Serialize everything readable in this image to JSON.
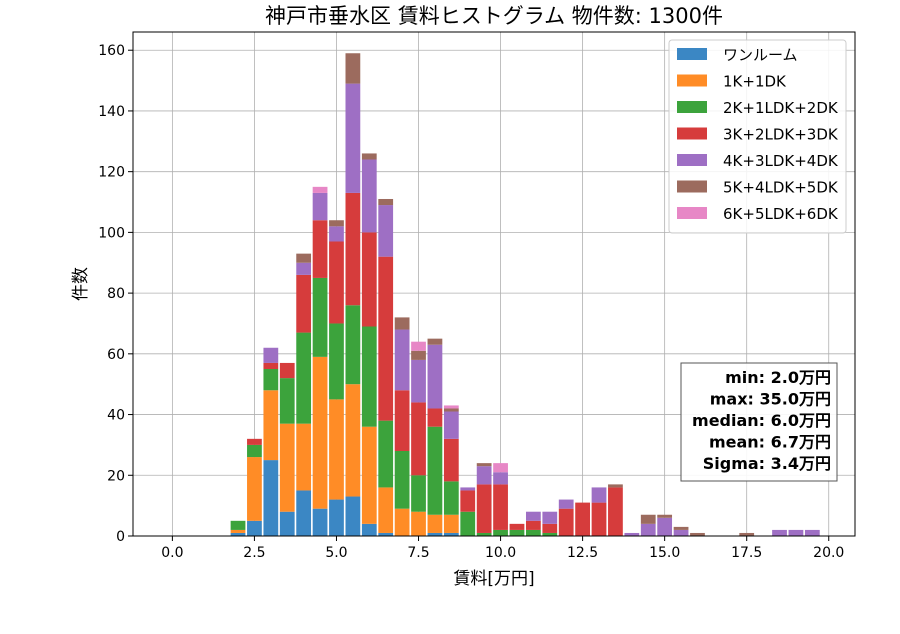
{
  "chart_data": {
    "type": "bar",
    "title": "神戸市垂水区 賃料ヒストグラム 物件数: 1300件",
    "xlabel": "賃料[万円]",
    "ylabel": "件数",
    "xlim": [
      -1.2,
      20.8
    ],
    "ylim": [
      0,
      166
    ],
    "x_ticks": [
      0.0,
      2.5,
      5.0,
      7.5,
      10.0,
      12.5,
      15.0,
      17.5,
      20.0
    ],
    "x_tick_labels": [
      "0.0",
      "2.5",
      "5.0",
      "7.5",
      "10.0",
      "12.5",
      "15.0",
      "17.5",
      "20.0"
    ],
    "y_ticks": [
      0,
      20,
      40,
      60,
      80,
      100,
      120,
      140,
      160
    ],
    "y_tick_labels": [
      "0",
      "20",
      "40",
      "60",
      "80",
      "100",
      "120",
      "140",
      "160"
    ],
    "bin_width": 0.5,
    "grid": true,
    "legend_position": "top-right",
    "x": [
      2.0,
      2.5,
      3.0,
      3.5,
      4.0,
      4.5,
      5.0,
      5.5,
      6.0,
      6.5,
      7.0,
      7.5,
      8.0,
      8.5,
      9.0,
      9.5,
      10.0,
      10.5,
      11.0,
      11.5,
      12.0,
      12.5,
      13.0,
      13.5,
      14.0,
      14.5,
      15.0,
      15.5,
      16.0,
      17.5,
      18.5,
      19.0,
      19.5
    ],
    "series": [
      {
        "name": "ワンルーム",
        "color": "#3b87c4",
        "values": [
          1,
          5,
          25,
          8,
          15,
          9,
          12,
          13,
          4,
          1,
          0,
          0,
          1,
          1,
          0,
          0,
          0,
          0,
          0,
          0,
          0,
          0,
          0,
          0,
          0,
          0,
          0,
          0,
          0,
          0,
          0,
          0,
          0
        ]
      },
      {
        "name": "1K+1DK",
        "color": "#ff8c26",
        "values": [
          1,
          21,
          23,
          29,
          22,
          50,
          33,
          37,
          32,
          15,
          9,
          8,
          6,
          6,
          0,
          0,
          0,
          0,
          0,
          0,
          0,
          0,
          0,
          0,
          0,
          0,
          0,
          0,
          0,
          0,
          0,
          0,
          0
        ]
      },
      {
        "name": "2K+1LDK+2DK",
        "color": "#3ca33c",
        "values": [
          3,
          4,
          7,
          15,
          30,
          26,
          25,
          26,
          33,
          22,
          19,
          12,
          29,
          11,
          8,
          1,
          2,
          2,
          2,
          1,
          0,
          0,
          0,
          0,
          0,
          0,
          0,
          0,
          0,
          0,
          0,
          0,
          0
        ]
      },
      {
        "name": "3K+2LDK+3DK",
        "color": "#d63c3c",
        "values": [
          0,
          2,
          2,
          5,
          19,
          19,
          27,
          37,
          31,
          54,
          20,
          24,
          6,
          14,
          7,
          16,
          15,
          2,
          3,
          3,
          9,
          11,
          11,
          16,
          0,
          0,
          0,
          0,
          0,
          0,
          0,
          0,
          0
        ]
      },
      {
        "name": "4K+3LDK+4DK",
        "color": "#9e6fc4",
        "values": [
          0,
          0,
          5,
          0,
          4,
          9,
          5,
          36,
          24,
          17,
          20,
          14,
          21,
          9,
          1,
          6,
          4,
          0,
          3,
          4,
          3,
          0,
          5,
          0,
          1,
          4,
          6,
          2,
          0,
          0,
          2,
          2,
          2
        ]
      },
      {
        "name": "5K+4LDK+5DK",
        "color": "#9c6b5e",
        "values": [
          0,
          0,
          0,
          0,
          3,
          0,
          2,
          10,
          2,
          2,
          4,
          3,
          2,
          1,
          0,
          1,
          0,
          0,
          0,
          0,
          0,
          0,
          0,
          1,
          0,
          3,
          1,
          1,
          1,
          1,
          0,
          0,
          0
        ]
      },
      {
        "name": "6K+5LDK+6DK",
        "color": "#e787c6",
        "values": [
          0,
          0,
          0,
          0,
          0,
          2,
          0,
          0,
          0,
          0,
          0,
          3,
          0,
          1,
          0,
          0,
          3,
          0,
          0,
          0,
          0,
          0,
          0,
          0,
          0,
          0,
          0,
          0,
          0,
          0,
          0,
          0,
          0
        ]
      }
    ],
    "stats_box": {
      "lines": [
        "min: 2.0万円",
        "max: 35.0万円",
        "median: 6.0万円",
        "mean: 6.7万円",
        "Sigma: 3.4万円"
      ],
      "position": "right"
    }
  }
}
